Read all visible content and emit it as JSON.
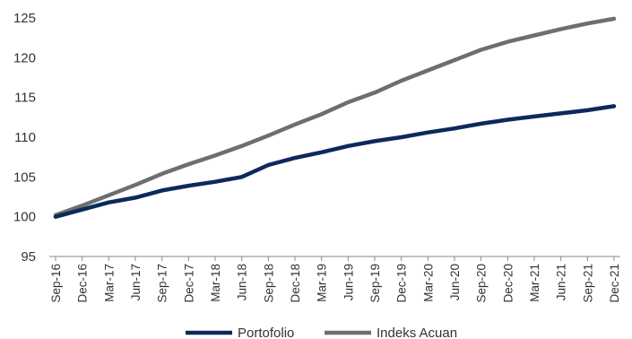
{
  "chart_data": {
    "type": "line",
    "title": "",
    "xlabel": "",
    "ylabel": "",
    "ylim": [
      95,
      125
    ],
    "yticks": [
      95,
      100,
      105,
      110,
      115,
      120,
      125
    ],
    "grid": false,
    "legend": "bottom",
    "categories": [
      "Sep-16",
      "Dec-16",
      "Mar-17",
      "Jun-17",
      "Sep-17",
      "Dec-17",
      "Mar-18",
      "Jun-18",
      "Sep-18",
      "Dec-18",
      "Mar-19",
      "Jun-19",
      "Sep-19",
      "Dec-19",
      "Mar-20",
      "Jun-20",
      "Sep-20",
      "Dec-20",
      "Mar-21",
      "Jun-21",
      "Sep-21",
      "Dec-21"
    ],
    "series": [
      {
        "name": "Portofolio",
        "color": "#0b2a5b",
        "values": [
          100.0,
          100.9,
          101.8,
          102.4,
          103.3,
          103.9,
          104.4,
          105.0,
          106.5,
          107.4,
          108.1,
          108.9,
          109.5,
          110.0,
          110.6,
          111.1,
          111.7,
          112.2,
          112.6,
          113.0,
          113.4,
          113.9
        ]
      },
      {
        "name": "Indeks Acuan",
        "color": "#6d6e71",
        "values": [
          100.2,
          101.4,
          102.7,
          104.0,
          105.4,
          106.6,
          107.7,
          108.9,
          110.2,
          111.6,
          112.9,
          114.4,
          115.6,
          117.1,
          118.4,
          119.7,
          121.0,
          122.0,
          122.8,
          123.6,
          124.3,
          124.9
        ]
      }
    ]
  }
}
